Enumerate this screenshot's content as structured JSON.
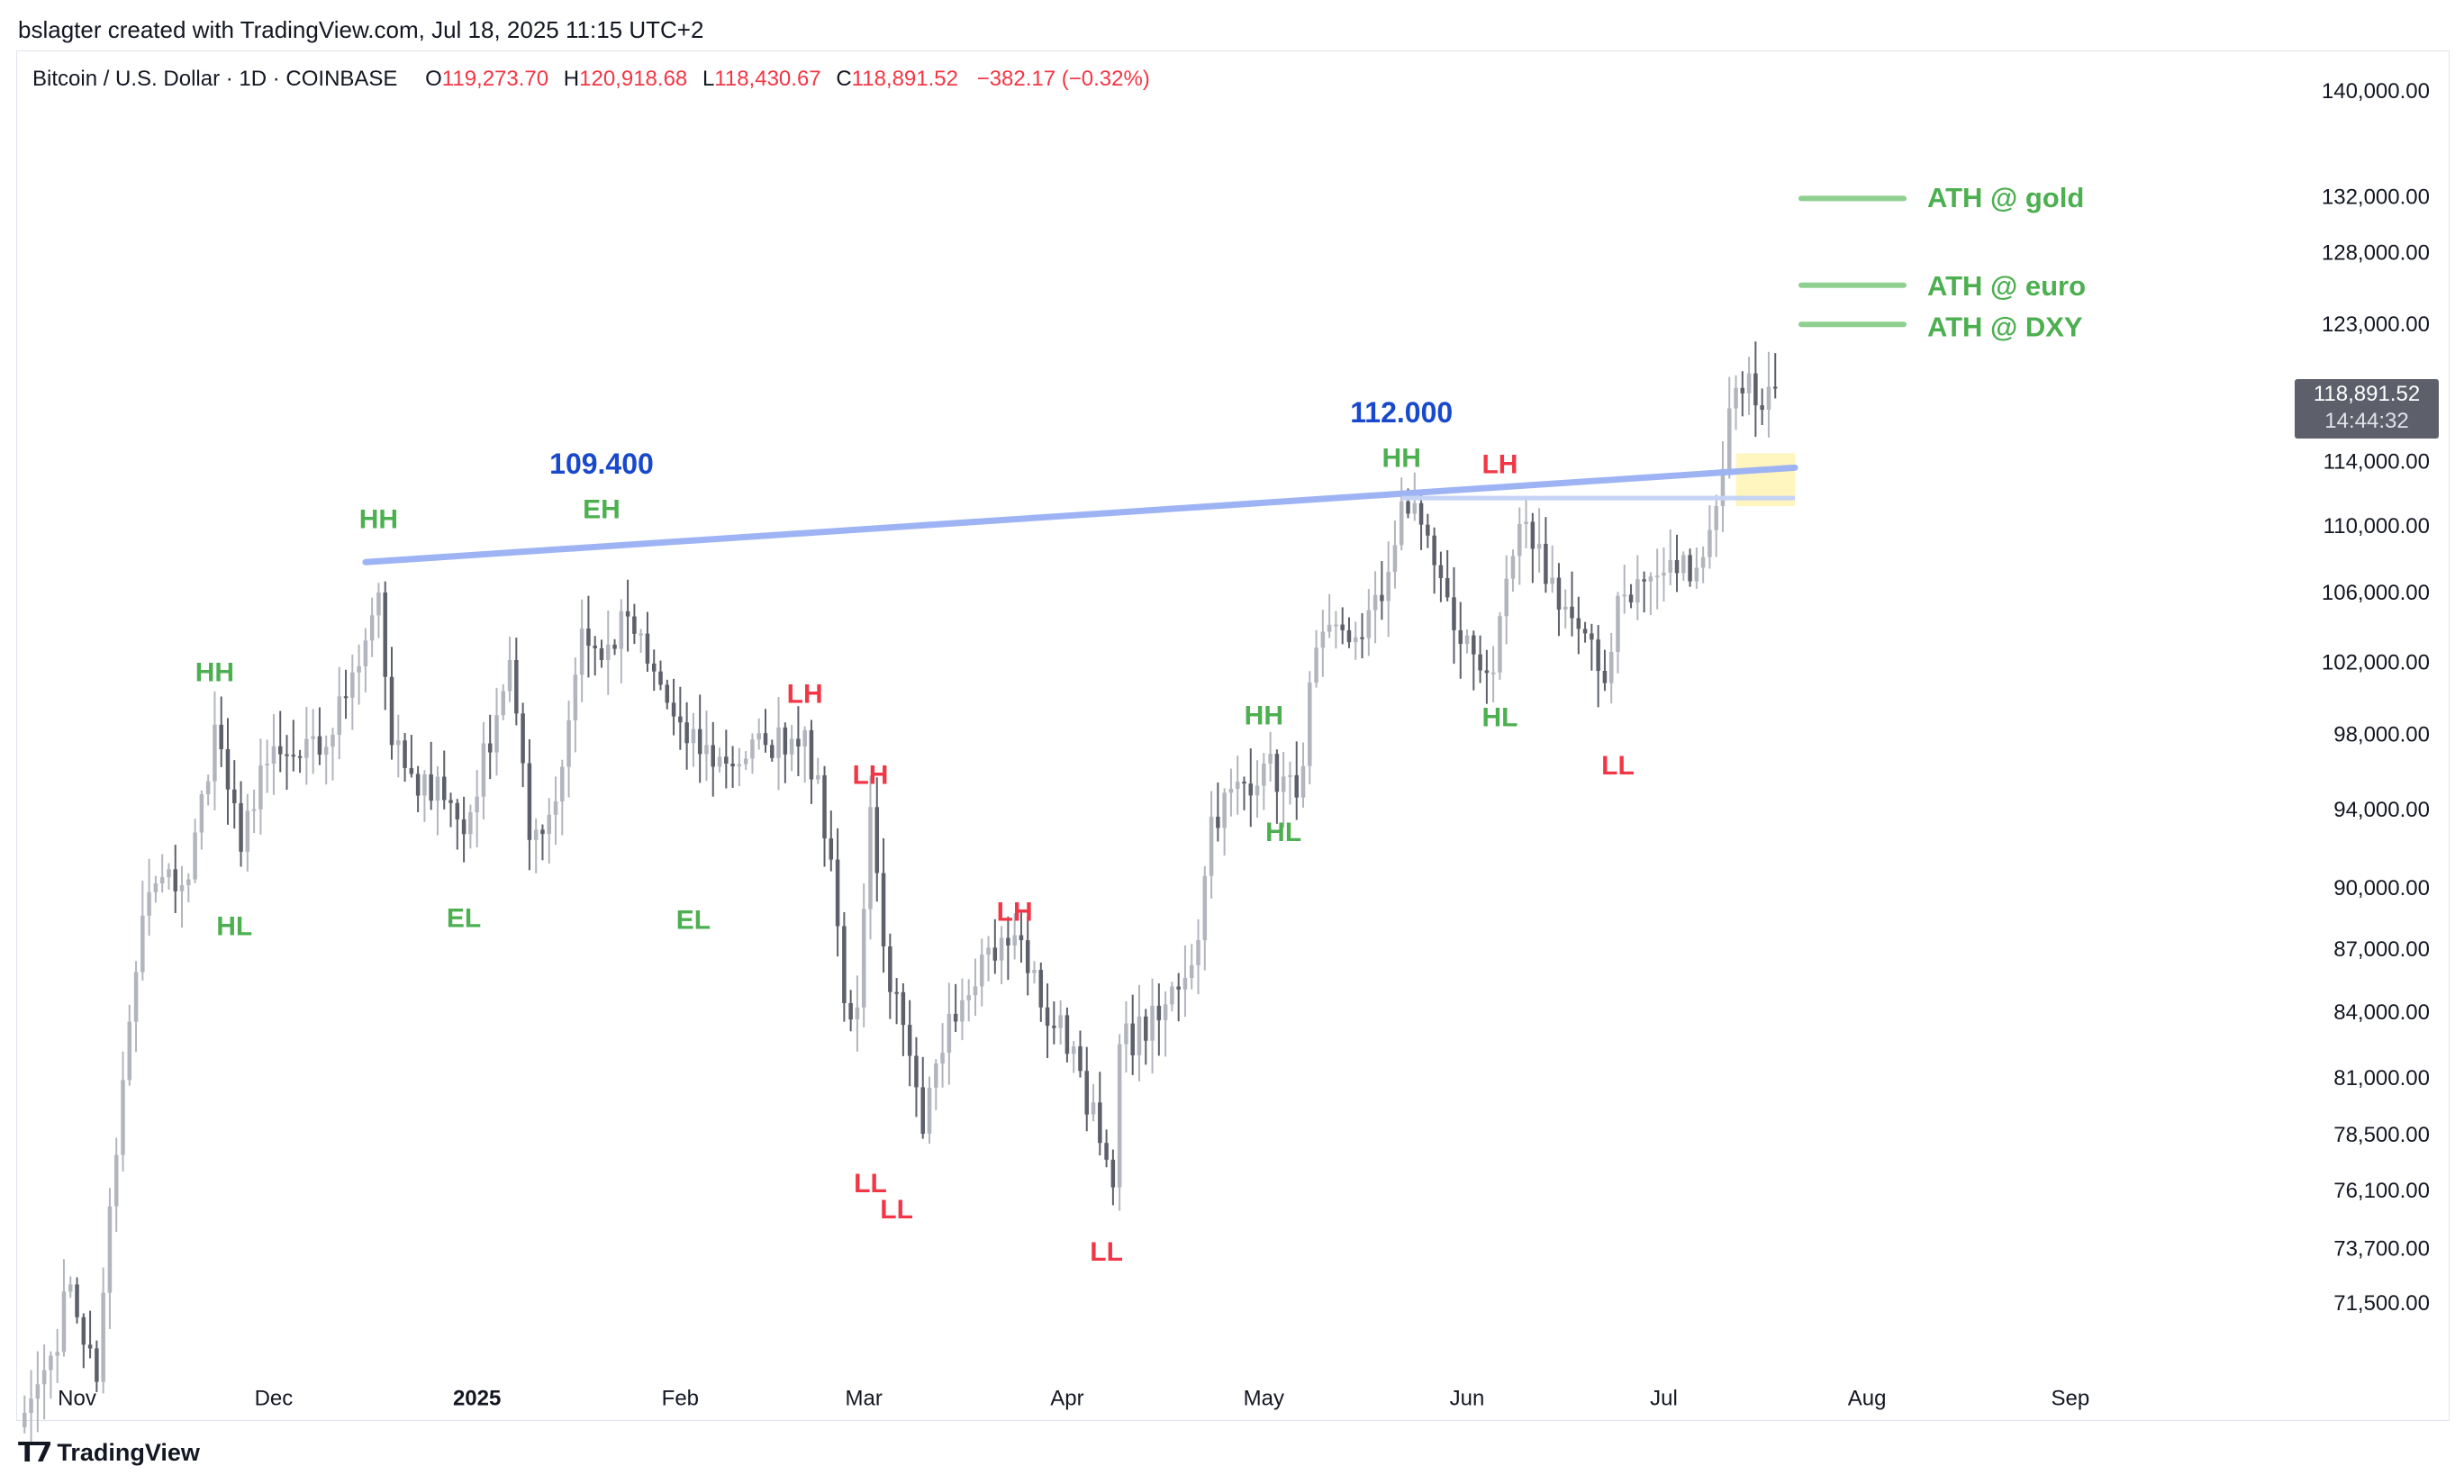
{
  "header": {
    "credit": "bslagter created with TradingView.com, Jul 18, 2025 11:15 UTC+2"
  },
  "legend": {
    "symbol": "Bitcoin / U.S. Dollar · 1D · COINBASE",
    "o_label": "O",
    "o_value": "119,273.70",
    "h_label": "H",
    "h_value": "120,918.68",
    "l_label": "L",
    "l_value": "118,430.67",
    "c_label": "C",
    "c_value": "118,891.52",
    "change": "−382.17 (−0.32%)"
  },
  "last_price": {
    "price": "118,891.52",
    "countdown": "14:44:32"
  },
  "footer": {
    "brand": "TradingView"
  },
  "colors": {
    "up": "#b2b5be",
    "down": "#5d606b",
    "green": "#4caf50",
    "red": "#f23645",
    "blue": "#1848cc",
    "trendline": "#9db3f4",
    "highlight": "#fff3b3"
  },
  "chart_data": {
    "type": "candlestick",
    "scale": "log",
    "ylim": [
      69000,
      143000
    ],
    "y_ticks": [
      {
        "value": 140000,
        "label": "140,000.00"
      },
      {
        "value": 132000,
        "label": "132,000.00"
      },
      {
        "value": 128000,
        "label": "128,000.00"
      },
      {
        "value": 123000,
        "label": "123,000.00"
      },
      {
        "value": 114000,
        "label": "114,000.00"
      },
      {
        "value": 110000,
        "label": "110,000.00"
      },
      {
        "value": 106000,
        "label": "106,000.00"
      },
      {
        "value": 102000,
        "label": "102,000.00"
      },
      {
        "value": 98000,
        "label": "98,000.00"
      },
      {
        "value": 94000,
        "label": "94,000.00"
      },
      {
        "value": 90000,
        "label": "90,000.00"
      },
      {
        "value": 87000,
        "label": "87,000.00"
      },
      {
        "value": 84000,
        "label": "84,000.00"
      },
      {
        "value": 81000,
        "label": "81,000.00"
      },
      {
        "value": 78500,
        "label": "78,500.00"
      },
      {
        "value": 76100,
        "label": "76,100.00"
      },
      {
        "value": 73700,
        "label": "73,700.00"
      },
      {
        "value": 71500,
        "label": "71,500.00"
      }
    ],
    "x_range": [
      "2024-10-23",
      "2025-09-30"
    ],
    "x_ticks": [
      {
        "date": "2024-11-01",
        "label": "Nov",
        "bold": false
      },
      {
        "date": "2024-12-01",
        "label": "Dec",
        "bold": false
      },
      {
        "date": "2025-01-01",
        "label": "2025",
        "bold": true
      },
      {
        "date": "2025-02-01",
        "label": "Feb",
        "bold": false
      },
      {
        "date": "2025-03-01",
        "label": "Mar",
        "bold": false
      },
      {
        "date": "2025-04-01",
        "label": "Apr",
        "bold": false
      },
      {
        "date": "2025-05-01",
        "label": "May",
        "bold": false
      },
      {
        "date": "2025-06-01",
        "label": "Jun",
        "bold": false
      },
      {
        "date": "2025-07-01",
        "label": "Jul",
        "bold": false
      },
      {
        "date": "2025-08-01",
        "label": "Aug",
        "bold": false
      },
      {
        "date": "2025-09-01",
        "label": "Sep",
        "bold": false
      }
    ],
    "anchors": [
      [
        "2024-10-23",
        66800
      ],
      [
        "2024-10-28",
        69500
      ],
      [
        "2024-10-31",
        72300
      ],
      [
        "2024-11-04",
        68500
      ],
      [
        "2024-11-06",
        75500
      ],
      [
        "2024-11-11",
        88700
      ],
      [
        "2024-11-13",
        90300
      ],
      [
        "2024-11-18",
        90500
      ],
      [
        "2024-11-22",
        98600
      ],
      [
        "2024-11-26",
        91900
      ],
      [
        "2024-11-29",
        96400
      ],
      [
        "2024-12-05",
        96800
      ],
      [
        "2024-12-09",
        97400
      ],
      [
        "2024-12-13",
        101500
      ],
      [
        "2024-12-17",
        106100
      ],
      [
        "2024-12-19",
        97500
      ],
      [
        "2024-12-23",
        94800
      ],
      [
        "2024-12-26",
        95800
      ],
      [
        "2024-12-30",
        92800
      ],
      [
        "2025-01-06",
        102200
      ],
      [
        "2025-01-09",
        92500
      ],
      [
        "2025-01-13",
        94500
      ],
      [
        "2025-01-17",
        104000
      ],
      [
        "2025-01-20",
        102200
      ],
      [
        "2025-01-24",
        104700
      ],
      [
        "2025-01-27",
        102000
      ],
      [
        "2025-02-02",
        97600
      ],
      [
        "2025-02-08",
        96500
      ],
      [
        "2025-02-14",
        97500
      ],
      [
        "2025-02-20",
        98300
      ],
      [
        "2025-02-24",
        91500
      ],
      [
        "2025-02-26",
        84500
      ],
      [
        "2025-02-28",
        84300
      ],
      [
        "2025-03-02",
        94200
      ],
      [
        "2025-03-04",
        87200
      ],
      [
        "2025-03-10",
        78600
      ],
      [
        "2025-03-14",
        84000
      ],
      [
        "2025-03-19",
        86800
      ],
      [
        "2025-03-25",
        87500
      ],
      [
        "2025-03-28",
        84300
      ],
      [
        "2025-04-02",
        82500
      ],
      [
        "2025-04-06",
        78200
      ],
      [
        "2025-04-08",
        76300
      ],
      [
        "2025-04-09",
        82600
      ],
      [
        "2025-04-15",
        83700
      ],
      [
        "2025-04-21",
        87500
      ],
      [
        "2025-04-23",
        93700
      ],
      [
        "2025-05-01",
        96500
      ],
      [
        "2025-05-06",
        94700
      ],
      [
        "2025-05-09",
        102900
      ],
      [
        "2025-05-15",
        103500
      ],
      [
        "2025-05-19",
        105600
      ],
      [
        "2025-05-22",
        111600
      ],
      [
        "2025-05-26",
        109500
      ],
      [
        "2025-05-30",
        103900
      ],
      [
        "2025-06-05",
        101500
      ],
      [
        "2025-06-09",
        110200
      ],
      [
        "2025-06-11",
        108700
      ],
      [
        "2025-06-17",
        104600
      ],
      [
        "2025-06-22",
        100900
      ],
      [
        "2025-06-24",
        105900
      ],
      [
        "2025-06-30",
        107100
      ],
      [
        "2025-07-07",
        108200
      ],
      [
        "2025-07-09",
        111300
      ],
      [
        "2025-07-11",
        117500
      ],
      [
        "2025-07-14",
        119800
      ],
      [
        "2025-07-15",
        117700
      ],
      [
        "2025-07-18",
        118900
      ]
    ],
    "annotations": [
      {
        "text": "HH",
        "color": "green",
        "date": "2024-11-22",
        "price": 101400
      },
      {
        "text": "HL",
        "color": "green",
        "date": "2024-11-25",
        "price": 88100
      },
      {
        "text": "HH",
        "color": "green",
        "date": "2024-12-17",
        "price": 110400
      },
      {
        "text": "EL",
        "color": "green",
        "date": "2024-12-30",
        "price": 88500
      },
      {
        "text": "EH",
        "color": "green",
        "date": "2025-01-20",
        "price": 111000
      },
      {
        "text": "109.400",
        "color": "blue",
        "date": "2025-01-20",
        "price": 113800
      },
      {
        "text": "EL",
        "color": "green",
        "date": "2025-02-03",
        "price": 88400
      },
      {
        "text": "LH",
        "color": "red",
        "date": "2025-02-20",
        "price": 100200
      },
      {
        "text": "LH",
        "color": "red",
        "date": "2025-03-02",
        "price": 95800
      },
      {
        "text": "LL",
        "color": "red",
        "date": "2025-03-02",
        "price": 76400
      },
      {
        "text": "LL",
        "color": "red",
        "date": "2025-03-06",
        "price": 75300
      },
      {
        "text": "LH",
        "color": "red",
        "date": "2025-03-24",
        "price": 88800
      },
      {
        "text": "LL",
        "color": "red",
        "date": "2025-04-07",
        "price": 73550
      },
      {
        "text": "HH",
        "color": "green",
        "date": "2025-05-01",
        "price": 99000
      },
      {
        "text": "HL",
        "color": "green",
        "date": "2025-05-04",
        "price": 92800
      },
      {
        "text": "112.000",
        "color": "blue",
        "date": "2025-05-22",
        "price": 117100
      },
      {
        "text": "HH",
        "color": "green",
        "date": "2025-05-22",
        "price": 114200
      },
      {
        "text": "LH",
        "color": "red",
        "date": "2025-06-06",
        "price": 113800
      },
      {
        "text": "HL",
        "color": "green",
        "date": "2025-06-06",
        "price": 98900
      },
      {
        "text": "LL",
        "color": "red",
        "date": "2025-06-24",
        "price": 96300
      },
      {
        "text": "ATH @ gold",
        "color": "green",
        "date": "2025-07-24",
        "price": 131900
      },
      {
        "text": "ATH @ euro",
        "color": "green",
        "date": "2025-07-24",
        "price": 125600
      },
      {
        "text": "ATH @ DXY",
        "color": "green",
        "date": "2025-07-24",
        "price": 122800
      }
    ],
    "ath_levels": [
      {
        "name": "ATH @ gold",
        "price": 132000
      },
      {
        "name": "ATH @ euro",
        "price": 125800
      },
      {
        "name": "ATH @ DXY",
        "price": 123100
      }
    ],
    "trendline": {
      "from": [
        "2024-12-15",
        107900
      ],
      "to": [
        "2025-07-21",
        113700
      ]
    },
    "horizontal_line": {
      "price": 111800,
      "from": "2025-05-22",
      "to": "2025-07-21"
    },
    "highlight_zone": {
      "from": "2025-07-12",
      "to": "2025-07-21",
      "low": 111300,
      "high": 114600
    }
  }
}
